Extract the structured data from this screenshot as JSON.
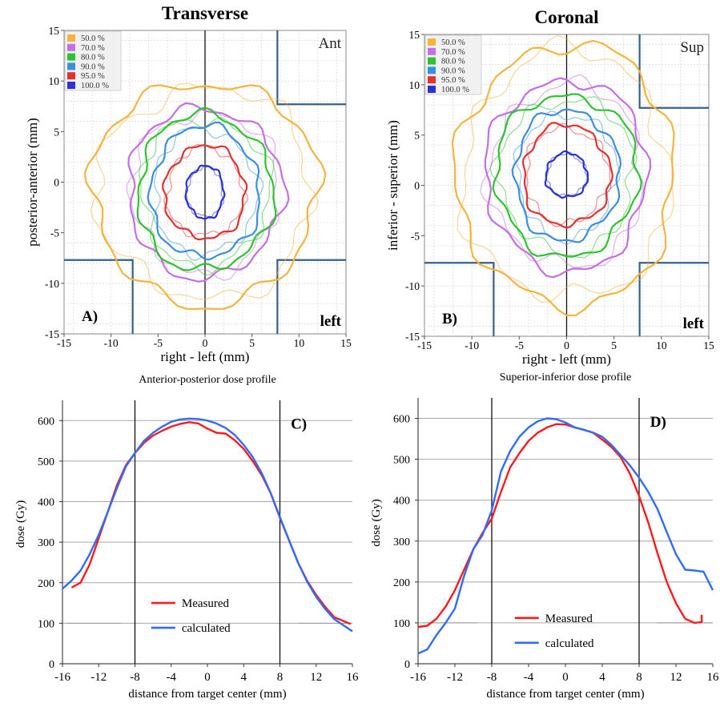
{
  "colors": {
    "c50": "#f5b43c",
    "c70": "#c46ee8",
    "c80": "#2ec42e",
    "c90": "#3a8fe0",
    "c95": "#e53030",
    "c100": "#2a32d6",
    "measured": "#ff1a1a",
    "calculated": "#2f6bff",
    "field_edge": "#35608a"
  },
  "chart_data": [
    {
      "type": "contour",
      "panel": "A)",
      "title": "Transverse",
      "corner_top_right": "Ant",
      "corner_bottom_right": "left",
      "xlabel": "right - left (mm)",
      "ylabel": "posterior-anterior (mm)",
      "xlim": [
        -15,
        15
      ],
      "ylim": [
        -15,
        15
      ],
      "xticks": [
        -15,
        -10,
        -5,
        0,
        5,
        10,
        15
      ],
      "yticks": [
        -15,
        -10,
        -5,
        0,
        5,
        10,
        15
      ],
      "legend": [
        "50.0 %",
        "70.0 %",
        "80.0 %",
        "90.0 %",
        "95.0 %",
        "100.0 %"
      ],
      "isodose_radii": [
        {
          "level": "50.0 %",
          "rx": 12,
          "ry": 11
        },
        {
          "level": "70.0 %",
          "rx": 8.2,
          "ry": 8.4
        },
        {
          "level": "80.0 %",
          "rx": 7.2,
          "ry": 7.7
        },
        {
          "level": "90.0 %",
          "rx": 5.8,
          "ry": 6.5
        },
        {
          "level": "95.0 %",
          "rx": 4.3,
          "ry": 4.6
        },
        {
          "level": "100.0 %",
          "rx": 2.0,
          "ry": 2.6
        }
      ],
      "center": [
        0,
        -1
      ]
    },
    {
      "type": "contour",
      "panel": "B)",
      "title": "Coronal",
      "corner_top_right": "Sup",
      "corner_bottom_right": "left",
      "xlabel": "right - left (mm)",
      "ylabel": "inferior - superior (mm)",
      "xlim": [
        -15,
        15
      ],
      "ylim": [
        -15,
        15
      ],
      "xticks": [
        -15,
        -10,
        -5,
        0,
        5,
        10,
        15
      ],
      "yticks": [
        -15,
        -10,
        -5,
        0,
        5,
        10,
        15
      ],
      "legend": [
        "50.0 %",
        "70.0 %",
        "80.0 %",
        "90.0 %",
        "95.0 %",
        "100.0 %"
      ],
      "isodose_radii": [
        {
          "level": "50.0 %",
          "rx": 11.5,
          "ry": 13
        },
        {
          "level": "70.0 %",
          "rx": 8.5,
          "ry": 9.5
        },
        {
          "level": "80.0 %",
          "rx": 7.5,
          "ry": 8
        },
        {
          "level": "90.0 %",
          "rx": 5.5,
          "ry": 6.5
        },
        {
          "level": "95.0 %",
          "rx": 4.6,
          "ry": 5.0
        },
        {
          "level": "100.0 %",
          "rx": 2.2,
          "ry": 2.2
        }
      ],
      "center": [
        0,
        1
      ]
    },
    {
      "type": "line",
      "panel": "C)",
      "title": "Anterior-posterior dose profile",
      "xlabel": "distance from target center (mm)",
      "ylabel": "dose (Gy)",
      "xlim": [
        -16,
        16
      ],
      "ylim": [
        0,
        650
      ],
      "xticks": [
        -16,
        -12,
        -8,
        -4,
        0,
        4,
        8,
        12,
        16
      ],
      "yticks": [
        0,
        100,
        200,
        300,
        400,
        500,
        600
      ],
      "vlines": [
        -8,
        8
      ],
      "series": [
        {
          "name": "Measured",
          "x": [
            -15,
            -14,
            -13,
            -12,
            -11,
            -10,
            -9,
            -8,
            -7,
            -6,
            -5,
            -4,
            -3,
            -2,
            -1,
            0,
            1,
            2,
            3,
            4,
            5,
            6,
            7,
            8,
            9,
            10,
            11,
            12,
            13,
            14,
            15.8
          ],
          "y": [
            188,
            200,
            245,
            310,
            375,
            440,
            490,
            520,
            545,
            563,
            575,
            585,
            592,
            596,
            593,
            580,
            570,
            568,
            552,
            530,
            500,
            465,
            420,
            360,
            305,
            250,
            205,
            170,
            140,
            115,
            98
          ]
        },
        {
          "name": "calculated",
          "x": [
            -16,
            -15,
            -14,
            -13,
            -12,
            -11,
            -10,
            -9,
            -8,
            -7,
            -6,
            -5,
            -4,
            -3,
            -2,
            -1,
            0,
            1,
            2,
            3,
            4,
            5,
            6,
            7,
            8,
            9,
            10,
            11,
            12,
            13,
            14,
            15,
            16
          ],
          "y": [
            185,
            205,
            230,
            270,
            318,
            375,
            433,
            487,
            520,
            550,
            570,
            585,
            597,
            603,
            605,
            604,
            600,
            593,
            582,
            565,
            540,
            510,
            470,
            420,
            362,
            305,
            250,
            203,
            165,
            135,
            110,
            95,
            80
          ]
        }
      ],
      "legend": [
        "Measured",
        "calculated"
      ]
    },
    {
      "type": "line",
      "panel": "D)",
      "title": "Superior-inferior dose profile",
      "xlabel": "distance from target center (mm)",
      "ylabel": "dose (Gy)",
      "xlim": [
        -16,
        16
      ],
      "ylim": [
        0,
        650
      ],
      "xticks": [
        -16,
        -12,
        -8,
        -4,
        0,
        4,
        8,
        12,
        16
      ],
      "yticks": [
        0,
        100,
        200,
        300,
        400,
        500,
        600
      ],
      "vlines": [
        -8,
        8
      ],
      "series": [
        {
          "name": "Measured",
          "x": [
            -16,
            -15,
            -14,
            -13,
            -12,
            -11,
            -10,
            -9,
            -8,
            -7,
            -6,
            -5,
            -4,
            -3,
            -2,
            -1,
            0,
            1,
            2,
            3,
            4,
            5,
            6,
            7,
            8,
            9,
            10,
            11,
            12,
            13,
            14,
            14.8,
            14.8
          ],
          "y": [
            90,
            93,
            110,
            140,
            180,
            230,
            280,
            320,
            355,
            420,
            480,
            515,
            545,
            565,
            578,
            586,
            585,
            578,
            572,
            565,
            548,
            530,
            505,
            465,
            410,
            345,
            270,
            200,
            148,
            110,
            100,
            102,
            120
          ]
        },
        {
          "name": "calculated",
          "x": [
            -16,
            -15,
            -14,
            -13,
            -12,
            -11,
            -10,
            -9,
            -8,
            -7,
            -6,
            -5,
            -4,
            -3,
            -2,
            -1,
            0,
            1,
            2,
            3,
            4,
            5,
            6,
            7,
            8,
            9,
            10,
            11,
            12,
            13,
            14,
            15,
            16
          ],
          "y": [
            25,
            35,
            70,
            100,
            135,
            215,
            280,
            315,
            375,
            470,
            520,
            555,
            578,
            593,
            600,
            598,
            590,
            578,
            572,
            565,
            555,
            535,
            510,
            485,
            455,
            420,
            378,
            322,
            268,
            230,
            228,
            225,
            180
          ]
        }
      ],
      "legend": [
        "Measured",
        "calculated"
      ]
    }
  ]
}
